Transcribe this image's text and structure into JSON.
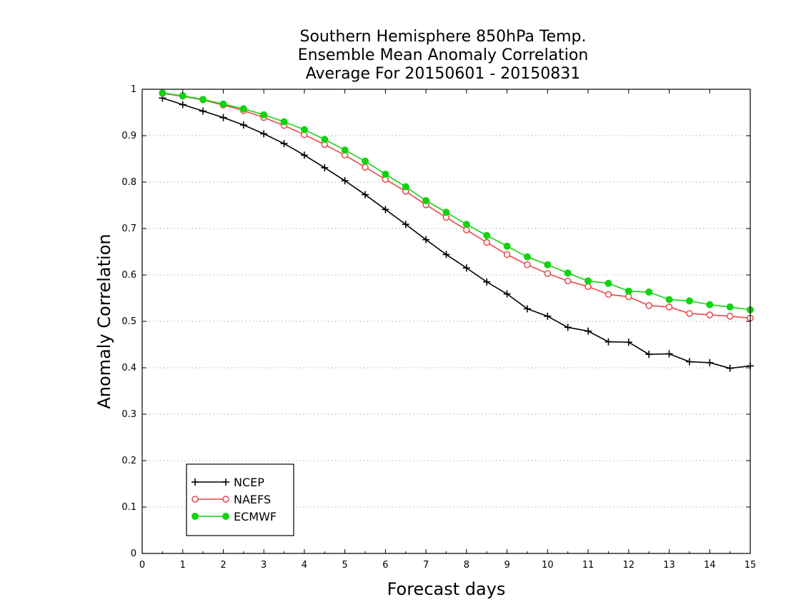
{
  "chart_data": {
    "type": "line",
    "title": [
      "Southern Hemisphere 850hPa Temp.",
      "Ensemble Mean Anomaly Correlation",
      "Average For 20150601 - 20150831"
    ],
    "xlabel": "Forecast days",
    "ylabel": "Anomaly Correlation",
    "xlim": [
      0,
      15
    ],
    "ylim": [
      0,
      1
    ],
    "x_ticks": [
      0,
      1,
      2,
      3,
      4,
      5,
      6,
      7,
      8,
      9,
      10,
      11,
      12,
      13,
      14,
      15
    ],
    "y_ticks": [
      0,
      0.1,
      0.2,
      0.3,
      0.4,
      0.5,
      0.6,
      0.7,
      0.8,
      0.9,
      1
    ],
    "y_tick_labels": [
      "0",
      "0.1",
      "0.2",
      "0.3",
      "0.4",
      "0.5",
      "0.6",
      "0.7",
      "0.8",
      "0.9",
      "1"
    ],
    "grid": "horizontal dotted",
    "legend_position": "bottom-left",
    "x": [
      0.5,
      1,
      1.5,
      2,
      2.5,
      3,
      3.5,
      4,
      4.5,
      5,
      5.5,
      6,
      6.5,
      7,
      7.5,
      8,
      8.5,
      9,
      9.5,
      10,
      10.5,
      11,
      11.5,
      12,
      12.5,
      13,
      13.5,
      14,
      14.5,
      15
    ],
    "series": [
      {
        "name": "NCEP",
        "color": "#000000",
        "marker": "plus",
        "values": [
          0.981,
          0.967,
          0.953,
          0.939,
          0.923,
          0.904,
          0.883,
          0.858,
          0.831,
          0.803,
          0.773,
          0.741,
          0.709,
          0.676,
          0.644,
          0.615,
          0.585,
          0.559,
          0.527,
          0.511,
          0.487,
          0.479,
          0.456,
          0.455,
          0.429,
          0.43,
          0.413,
          0.411,
          0.399,
          0.404
        ]
      },
      {
        "name": "NAEFS",
        "color": "#e8474a",
        "marker": "open-circle",
        "values": [
          0.991,
          0.985,
          0.977,
          0.966,
          0.954,
          0.939,
          0.922,
          0.902,
          0.881,
          0.858,
          0.832,
          0.806,
          0.78,
          0.751,
          0.724,
          0.697,
          0.67,
          0.644,
          0.622,
          0.603,
          0.587,
          0.575,
          0.558,
          0.553,
          0.534,
          0.531,
          0.517,
          0.514,
          0.511,
          0.507
        ]
      },
      {
        "name": "ECMWF",
        "color": "#11d411",
        "marker": "filled-circle",
        "values": [
          0.992,
          0.986,
          0.978,
          0.968,
          0.958,
          0.945,
          0.93,
          0.913,
          0.892,
          0.869,
          0.845,
          0.817,
          0.79,
          0.76,
          0.735,
          0.709,
          0.685,
          0.662,
          0.639,
          0.622,
          0.604,
          0.587,
          0.582,
          0.565,
          0.563,
          0.547,
          0.544,
          0.536,
          0.531,
          0.525
        ]
      }
    ]
  }
}
